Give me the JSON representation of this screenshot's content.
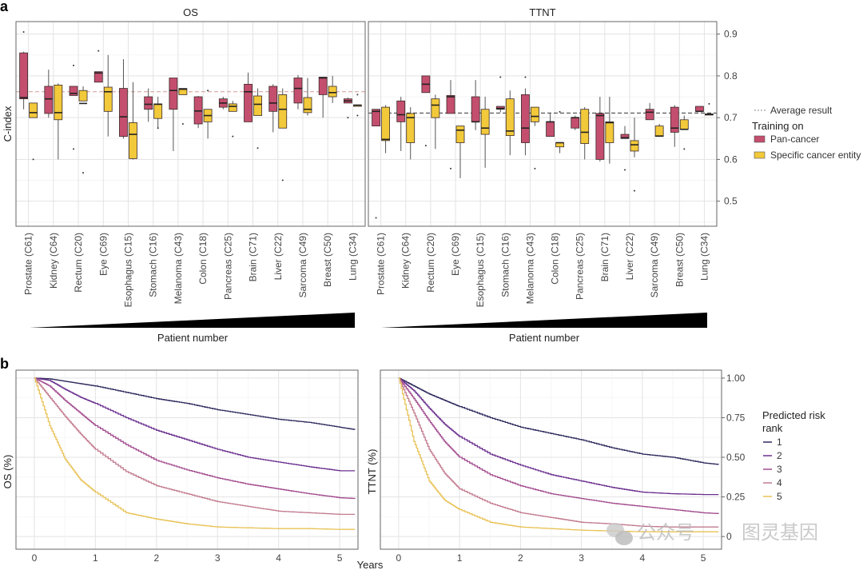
{
  "panel_a_label": "a",
  "panel_b_label": "b",
  "watermark": {
    "text_left": "公众号",
    "dot": "·",
    "text_right": "图灵基因"
  },
  "chart_data": [
    {
      "type": "box",
      "id": "panel-a",
      "facets": [
        "OS",
        "TTNT"
      ],
      "ylabel": "C-index",
      "ylim": [
        0.44,
        0.93
      ],
      "yticks": [
        0.5,
        0.6,
        0.7,
        0.8,
        0.9
      ],
      "ytick_labels": [
        "0.5",
        "0.6",
        "0.7",
        "0.8",
        "0.9"
      ],
      "average_line": {
        "OS": 0.762,
        "TTNT": 0.711
      },
      "categories": [
        "Prostate (C61)",
        "Kidney (C64)",
        "Rectum (C20)",
        "Eye (C69)",
        "Esophagus (C15)",
        "Stomach (C16)",
        "Melanoma (C43)",
        "Colon (C18)",
        "Pancreas (C25)",
        "Brain (C71)",
        "Liver (C22)",
        "Sarcoma (C49)",
        "Breast (C50)",
        "Lung (C34)"
      ],
      "x_annotation": "Patient number",
      "legend": {
        "line_label": "Average result",
        "title": "Training on",
        "entries": [
          {
            "name": "Pan-cancer",
            "color": "#c44e6e"
          },
          {
            "name": "Specific cancer entity",
            "color": "#f2c93a"
          }
        ]
      },
      "series": {
        "OS": {
          "Pan-cancer": [
            {
              "min": 0.72,
              "q1": 0.745,
              "med": 0.748,
              "q3": 0.855,
              "max": 0.858,
              "out": [
                0.905
              ]
            },
            {
              "min": 0.7,
              "q1": 0.71,
              "med": 0.745,
              "q3": 0.775,
              "max": 0.815,
              "out": []
            },
            {
              "min": 0.755,
              "q1": 0.753,
              "med": 0.758,
              "q3": 0.775,
              "max": 0.775,
              "out": [
                0.825,
                0.625
              ]
            },
            {
              "min": 0.79,
              "q1": 0.785,
              "med": 0.807,
              "q3": 0.81,
              "max": 0.81,
              "out": [
                0.86
              ]
            },
            {
              "min": 0.65,
              "q1": 0.655,
              "med": 0.702,
              "q3": 0.77,
              "max": 0.84,
              "out": []
            },
            {
              "min": 0.69,
              "q1": 0.72,
              "med": 0.732,
              "q3": 0.75,
              "max": 0.77,
              "out": []
            },
            {
              "min": 0.62,
              "q1": 0.72,
              "med": 0.765,
              "q3": 0.795,
              "max": 0.795,
              "out": []
            },
            {
              "min": 0.675,
              "q1": 0.685,
              "med": 0.716,
              "q3": 0.75,
              "max": 0.752,
              "out": []
            },
            {
              "min": 0.72,
              "q1": 0.725,
              "med": 0.735,
              "q3": 0.745,
              "max": 0.75,
              "out": []
            },
            {
              "min": 0.69,
              "q1": 0.69,
              "med": 0.762,
              "q3": 0.78,
              "max": 0.808,
              "out": []
            },
            {
              "min": 0.665,
              "q1": 0.715,
              "med": 0.735,
              "q3": 0.775,
              "max": 0.78,
              "out": []
            },
            {
              "min": 0.72,
              "q1": 0.735,
              "med": 0.77,
              "q3": 0.795,
              "max": 0.802,
              "out": []
            },
            {
              "min": 0.7,
              "q1": 0.755,
              "med": 0.795,
              "q3": 0.797,
              "max": 0.797,
              "out": []
            },
            {
              "min": 0.735,
              "q1": 0.735,
              "med": 0.74,
              "q3": 0.745,
              "max": 0.748,
              "out": [
                0.7
              ]
            }
          ],
          "Specific cancer entity": [
            {
              "min": 0.7,
              "q1": 0.7,
              "med": 0.712,
              "q3": 0.735,
              "max": 0.735,
              "out": [
                0.6
              ]
            },
            {
              "min": 0.6,
              "q1": 0.695,
              "med": 0.712,
              "q3": 0.778,
              "max": 0.782,
              "out": []
            },
            {
              "min": 0.74,
              "q1": 0.74,
              "med": 0.734,
              "q3": 0.765,
              "max": 0.775,
              "out": [
                0.568
              ]
            },
            {
              "min": 0.655,
              "q1": 0.715,
              "med": 0.762,
              "q3": 0.773,
              "max": 0.85,
              "out": []
            },
            {
              "min": 0.6,
              "q1": 0.602,
              "med": 0.66,
              "q3": 0.688,
              "max": 0.785,
              "out": []
            },
            {
              "min": 0.675,
              "q1": 0.698,
              "med": 0.732,
              "q3": 0.733,
              "max": 0.75,
              "out": [
                0.675
              ]
            },
            {
              "min": 0.755,
              "q1": 0.755,
              "med": 0.768,
              "q3": 0.77,
              "max": 0.77,
              "out": [
                0.685
              ]
            },
            {
              "min": 0.65,
              "q1": 0.69,
              "med": 0.705,
              "q3": 0.72,
              "max": 0.72,
              "out": [
                0.765
              ]
            },
            {
              "min": 0.715,
              "q1": 0.715,
              "med": 0.727,
              "q3": 0.733,
              "max": 0.74,
              "out": [
                0.655
              ]
            },
            {
              "min": 0.705,
              "q1": 0.705,
              "med": 0.732,
              "q3": 0.752,
              "max": 0.77,
              "out": [
                0.627
              ]
            },
            {
              "min": 0.675,
              "q1": 0.675,
              "med": 0.72,
              "q3": 0.755,
              "max": 0.77,
              "out": [
                0.55
              ]
            },
            {
              "min": 0.705,
              "q1": 0.712,
              "med": 0.72,
              "q3": 0.748,
              "max": 0.795,
              "out": []
            },
            {
              "min": 0.735,
              "q1": 0.75,
              "med": 0.76,
              "q3": 0.775,
              "max": 0.8,
              "out": []
            },
            {
              "min": 0.73,
              "q1": 0.73,
              "med": 0.73,
              "q3": 0.73,
              "max": 0.73,
              "out": [
                0.755,
                0.705
              ]
            }
          ]
        },
        "TTNT": {
          "Pan-cancer": [
            {
              "min": 0.68,
              "q1": 0.68,
              "med": 0.715,
              "q3": 0.72,
              "max": 0.72,
              "out": [
                0.46
              ]
            },
            {
              "min": 0.62,
              "q1": 0.69,
              "med": 0.707,
              "q3": 0.74,
              "max": 0.75,
              "out": []
            },
            {
              "min": 0.76,
              "q1": 0.76,
              "med": 0.78,
              "q3": 0.8,
              "max": 0.8,
              "out": [
                0.633
              ]
            },
            {
              "min": 0.71,
              "q1": 0.71,
              "med": 0.75,
              "q3": 0.753,
              "max": 0.79,
              "out": [
                0.578
              ]
            },
            {
              "min": 0.67,
              "q1": 0.69,
              "med": 0.69,
              "q3": 0.75,
              "max": 0.79,
              "out": []
            },
            {
              "min": 0.713,
              "q1": 0.72,
              "med": 0.722,
              "q3": 0.727,
              "max": 0.727,
              "out": [
                0.797
              ]
            },
            {
              "min": 0.61,
              "q1": 0.64,
              "med": 0.675,
              "q3": 0.755,
              "max": 0.77,
              "out": [
                0.797
              ]
            },
            {
              "min": 0.655,
              "q1": 0.655,
              "med": 0.69,
              "q3": 0.69,
              "max": 0.71,
              "out": []
            },
            {
              "min": 0.67,
              "q1": 0.675,
              "med": 0.7,
              "q3": 0.7,
              "max": 0.705,
              "out": []
            },
            {
              "min": 0.595,
              "q1": 0.6,
              "med": 0.705,
              "q3": 0.71,
              "max": 0.75,
              "out": []
            },
            {
              "min": 0.65,
              "q1": 0.65,
              "med": 0.652,
              "q3": 0.66,
              "max": 0.68,
              "out": [
                0.575
              ]
            },
            {
              "min": 0.7,
              "q1": 0.695,
              "med": 0.713,
              "q3": 0.72,
              "max": 0.735,
              "out": []
            },
            {
              "min": 0.63,
              "q1": 0.665,
              "med": 0.675,
              "q3": 0.725,
              "max": 0.73,
              "out": []
            },
            {
              "min": 0.715,
              "q1": 0.715,
              "med": 0.715,
              "q3": 0.727,
              "max": 0.727,
              "out": []
            }
          ],
          "Specific cancer entity": [
            {
              "min": 0.615,
              "q1": 0.645,
              "med": 0.648,
              "q3": 0.725,
              "max": 0.73,
              "out": []
            },
            {
              "min": 0.6,
              "q1": 0.64,
              "med": 0.7,
              "q3": 0.71,
              "max": 0.725,
              "out": []
            },
            {
              "min": 0.625,
              "q1": 0.7,
              "med": 0.73,
              "q3": 0.745,
              "max": 0.755,
              "out": []
            },
            {
              "min": 0.555,
              "q1": 0.64,
              "med": 0.67,
              "q3": 0.68,
              "max": 0.68,
              "out": []
            },
            {
              "min": 0.58,
              "q1": 0.66,
              "med": 0.675,
              "q3": 0.72,
              "max": 0.75,
              "out": []
            },
            {
              "min": 0.61,
              "q1": 0.657,
              "med": 0.668,
              "q3": 0.745,
              "max": 0.765,
              "out": []
            },
            {
              "min": 0.68,
              "q1": 0.69,
              "med": 0.703,
              "q3": 0.725,
              "max": 0.725,
              "out": [
                0.578
              ]
            },
            {
              "min": 0.615,
              "q1": 0.63,
              "med": 0.64,
              "q3": 0.64,
              "max": 0.64,
              "out": [
                0.714
              ]
            },
            {
              "min": 0.6,
              "q1": 0.638,
              "med": 0.665,
              "q3": 0.72,
              "max": 0.725,
              "out": []
            },
            {
              "min": 0.59,
              "q1": 0.64,
              "med": 0.688,
              "q3": 0.69,
              "max": 0.75,
              "out": []
            },
            {
              "min": 0.605,
              "q1": 0.62,
              "med": 0.635,
              "q3": 0.645,
              "max": 0.7,
              "out": [
                0.525
              ]
            },
            {
              "min": 0.655,
              "q1": 0.655,
              "med": 0.656,
              "q3": 0.68,
              "max": 0.685,
              "out": []
            },
            {
              "min": 0.675,
              "q1": 0.672,
              "med": 0.672,
              "q3": 0.695,
              "max": 0.705,
              "out": [
                0.625
              ]
            },
            {
              "min": 0.708,
              "q1": 0.708,
              "med": 0.708,
              "q3": 0.709,
              "max": 0.712,
              "out": [
                0.733
              ]
            }
          ]
        }
      }
    },
    {
      "type": "line",
      "id": "panel-b",
      "facets": [
        "OS",
        "TTNT"
      ],
      "ylabels": {
        "OS": "OS (%)",
        "TTNT": "TTNT (%)"
      },
      "xlabel": "Years",
      "xlim": [
        -0.3,
        5.3
      ],
      "ylim": [
        -0.08,
        1.05
      ],
      "xticks": [
        0,
        1,
        2,
        3,
        4,
        5
      ],
      "xtick_labels": [
        "0",
        "1",
        "2",
        "3",
        "4",
        "5"
      ],
      "yticks": [
        0,
        0.25,
        0.5,
        0.75,
        1.0
      ],
      "ytick_labels": [
        "0",
        "0.25",
        "0.50",
        "0.75",
        "1.00"
      ],
      "legend": {
        "title_line1": "Predicted risk",
        "title_line2": "rank",
        "entries": [
          {
            "name": "1",
            "color": "#2e2a5e"
          },
          {
            "name": "2",
            "color": "#6a2f8f"
          },
          {
            "name": "3",
            "color": "#a24b8e"
          },
          {
            "name": "4",
            "color": "#c27a8e"
          },
          {
            "name": "5",
            "color": "#e8c256"
          }
        ]
      },
      "x": [
        0,
        0.25,
        0.5,
        0.75,
        1,
        1.5,
        2,
        2.5,
        3,
        3.5,
        4,
        4.5,
        5,
        5.25
      ],
      "series": {
        "OS": [
          {
            "name": "1",
            "values": [
              1.0,
              0.995,
              0.98,
              0.965,
              0.95,
              0.91,
              0.87,
              0.84,
              0.8,
              0.77,
              0.74,
              0.72,
              0.69,
              0.675
            ]
          },
          {
            "name": "2",
            "values": [
              1.0,
              0.985,
              0.93,
              0.88,
              0.84,
              0.75,
              0.67,
              0.61,
              0.55,
              0.5,
              0.47,
              0.44,
              0.415,
              0.415
            ]
          },
          {
            "name": "3",
            "values": [
              1.0,
              0.95,
              0.86,
              0.78,
              0.7,
              0.58,
              0.48,
              0.42,
              0.37,
              0.33,
              0.3,
              0.27,
              0.245,
              0.24
            ]
          },
          {
            "name": "4",
            "values": [
              1.0,
              0.88,
              0.76,
              0.65,
              0.55,
              0.41,
              0.32,
              0.27,
              0.22,
              0.19,
              0.16,
              0.15,
              0.14,
              0.14
            ]
          },
          {
            "name": "5",
            "values": [
              1.0,
              0.7,
              0.49,
              0.36,
              0.28,
              0.15,
              0.11,
              0.08,
              0.06,
              0.055,
              0.05,
              0.05,
              0.045,
              0.045
            ]
          }
        ],
        "TTNT": [
          {
            "name": "1",
            "values": [
              1.0,
              0.95,
              0.9,
              0.86,
              0.82,
              0.75,
              0.69,
              0.65,
              0.61,
              0.56,
              0.52,
              0.5,
              0.465,
              0.455
            ]
          },
          {
            "name": "2",
            "values": [
              1.0,
              0.92,
              0.81,
              0.71,
              0.63,
              0.52,
              0.45,
              0.39,
              0.35,
              0.31,
              0.28,
              0.27,
              0.265,
              0.265
            ]
          },
          {
            "name": "3",
            "values": [
              1.0,
              0.87,
              0.73,
              0.6,
              0.5,
              0.39,
              0.32,
              0.27,
              0.24,
              0.21,
              0.19,
              0.17,
              0.15,
              0.145
            ]
          },
          {
            "name": "4",
            "values": [
              1.0,
              0.78,
              0.55,
              0.4,
              0.3,
              0.21,
              0.15,
              0.12,
              0.09,
              0.08,
              0.065,
              0.06,
              0.06,
              0.06
            ]
          },
          {
            "name": "5",
            "values": [
              1.0,
              0.6,
              0.35,
              0.23,
              0.17,
              0.09,
              0.06,
              0.05,
              0.04,
              0.035,
              0.03,
              0.03,
              0.03,
              0.03
            ]
          }
        ]
      }
    }
  ]
}
